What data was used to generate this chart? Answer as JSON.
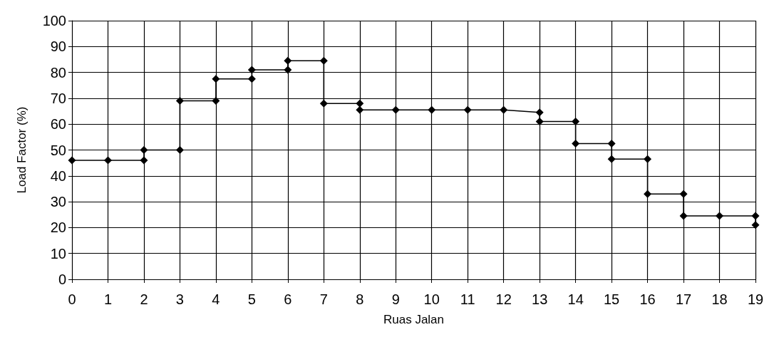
{
  "chart_data": {
    "type": "line",
    "xlabel": "Ruas Jalan",
    "ylabel": "Load Factor (%)",
    "x": [
      0,
      1,
      2,
      2,
      3,
      3,
      4,
      4,
      5,
      5,
      6,
      6,
      7,
      7,
      8,
      8,
      9,
      10,
      11,
      12,
      13,
      13,
      14,
      14,
      15,
      15,
      16,
      16,
      17,
      17,
      18,
      19,
      19
    ],
    "series": [
      {
        "color": "#000000",
        "values": [
          46,
          46,
          46,
          50,
          50,
          69,
          69,
          77.5,
          77.5,
          81,
          81,
          84.5,
          84.5,
          68,
          68,
          65.5,
          65.5,
          65.5,
          65.5,
          65.5,
          64.5,
          61,
          61,
          52.5,
          52.5,
          46.5,
          46.5,
          33,
          33,
          24.5,
          24.5,
          24.5,
          21
        ]
      }
    ],
    "xlim": [
      0,
      19
    ],
    "xticks": [
      0,
      1,
      2,
      3,
      4,
      5,
      6,
      7,
      8,
      9,
      10,
      11,
      12,
      13,
      14,
      15,
      16,
      17,
      18,
      19
    ],
    "ylim": [
      0,
      100
    ],
    "yticks": [
      0,
      10,
      20,
      30,
      40,
      50,
      60,
      70,
      80,
      90,
      100
    ],
    "grid": true,
    "marker": "diamond",
    "line_style": "solid"
  }
}
